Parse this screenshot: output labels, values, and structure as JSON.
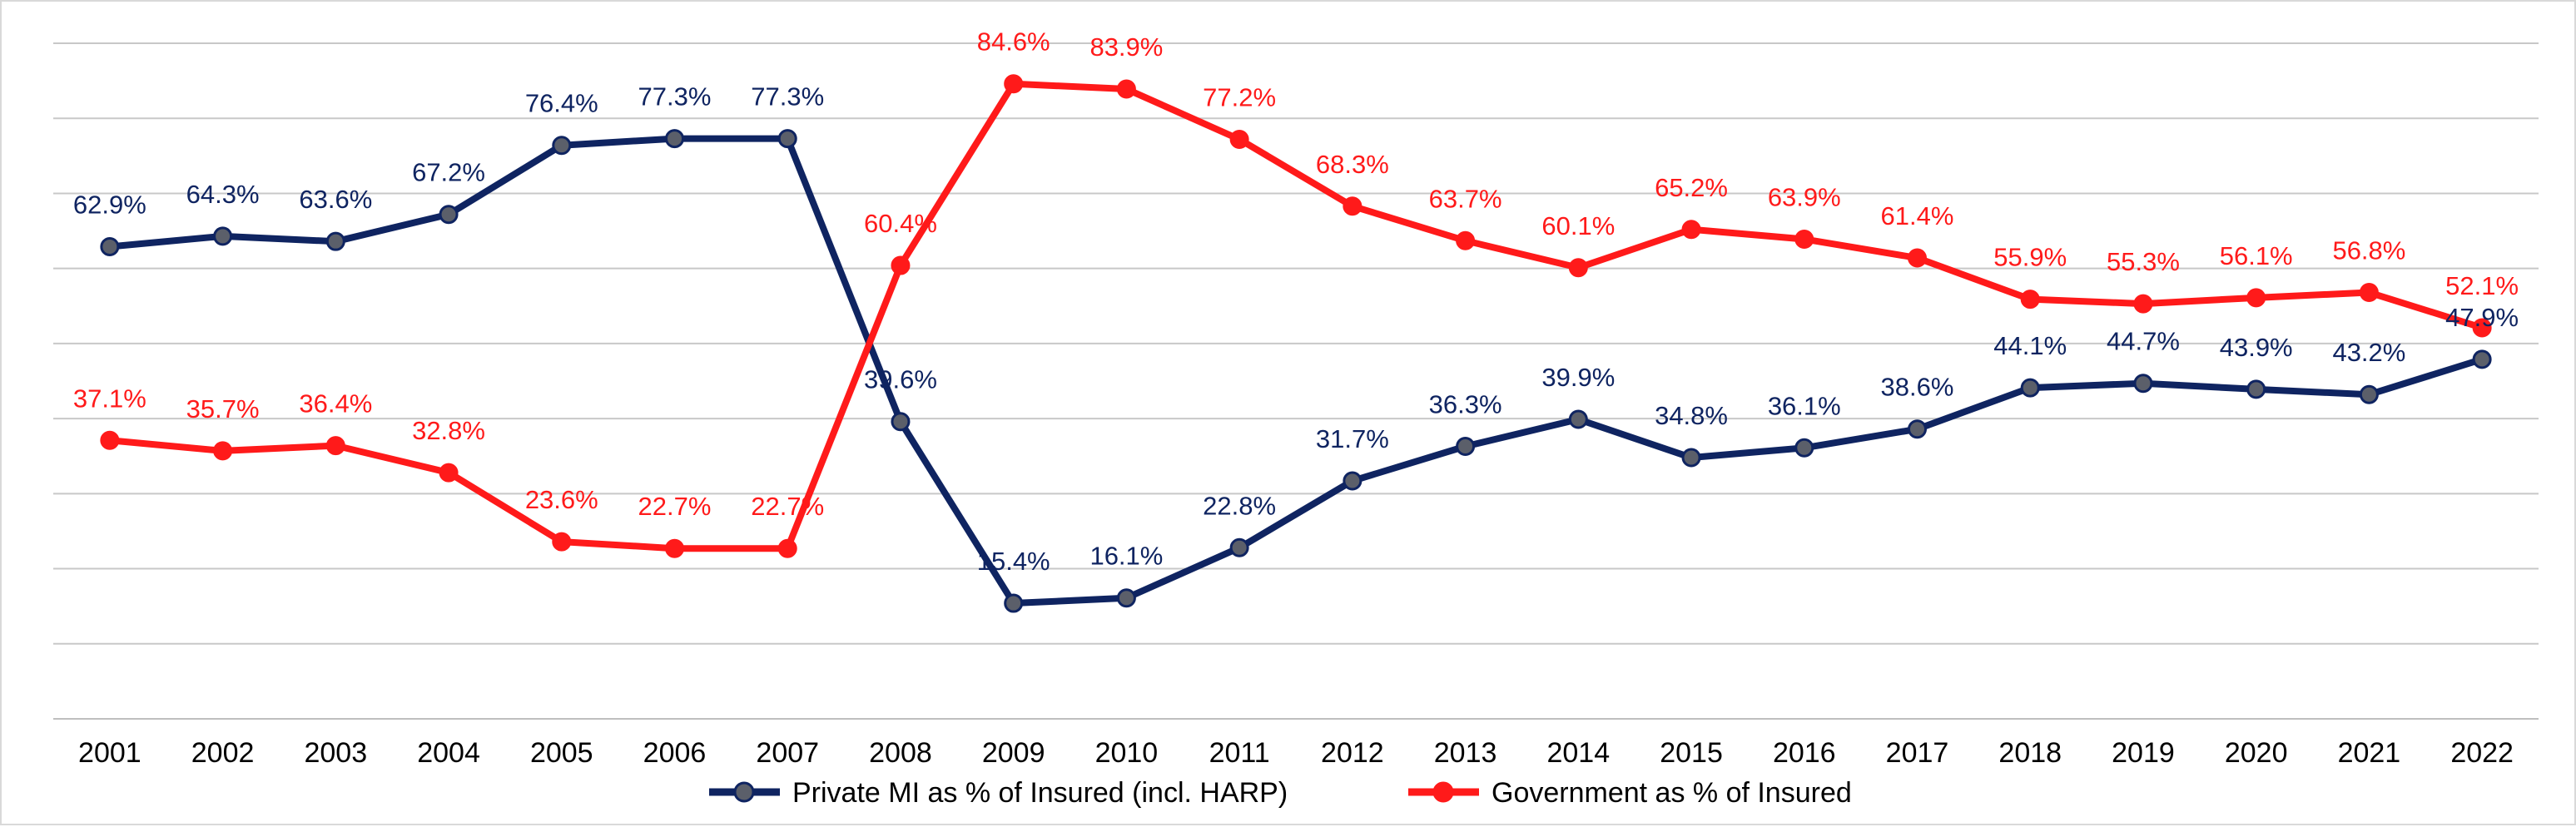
{
  "chart_data": {
    "type": "line",
    "title": "",
    "xlabel": "",
    "ylabel": "",
    "ylim": [
      0,
      90
    ],
    "grid": true,
    "categories": [
      "2001",
      "2002",
      "2003",
      "2004",
      "2005",
      "2006",
      "2007",
      "2008",
      "2009",
      "2010",
      "2011",
      "2012",
      "2013",
      "2014",
      "2015",
      "2016",
      "2017",
      "2018",
      "2019",
      "2020",
      "2021",
      "2022"
    ],
    "series": [
      {
        "name": "Private MI as % of Insured (incl. HARP)",
        "color": "#0f2461",
        "marker_color": "#5b5f6a",
        "values": [
          62.9,
          64.3,
          63.6,
          67.2,
          76.4,
          77.3,
          77.3,
          39.6,
          15.4,
          16.1,
          22.8,
          31.7,
          36.3,
          39.9,
          34.8,
          36.1,
          38.6,
          44.1,
          44.7,
          43.9,
          43.2,
          47.9
        ],
        "labels": [
          "62.9%",
          "64.3%",
          "63.6%",
          "67.2%",
          "76.4%",
          "77.3%",
          "77.3%",
          "39.6%",
          "15.4%",
          "16.1%",
          "22.8%",
          "31.7%",
          "36.3%",
          "39.9%",
          "34.8%",
          "36.1%",
          "38.6%",
          "44.1%",
          "44.7%",
          "43.9%",
          "43.2%",
          "47.9%"
        ]
      },
      {
        "name": "Government as % of Insured",
        "color": "#ff1a1a",
        "marker_color": "#ff1a1a",
        "values": [
          37.1,
          35.7,
          36.4,
          32.8,
          23.6,
          22.7,
          22.7,
          60.4,
          84.6,
          83.9,
          77.2,
          68.3,
          63.7,
          60.1,
          65.2,
          63.9,
          61.4,
          55.9,
          55.3,
          56.1,
          56.8,
          52.1
        ],
        "labels": [
          "37.1%",
          "35.7%",
          "36.4%",
          "32.8%",
          "23.6%",
          "22.7%",
          "22.7%",
          "60.4%",
          "84.6%",
          "83.9%",
          "77.2%",
          "68.3%",
          "63.7%",
          "60.1%",
          "65.2%",
          "63.9%",
          "61.4%",
          "55.9%",
          "55.3%",
          "56.1%",
          "56.8%",
          "52.1%"
        ]
      }
    ],
    "legend": {
      "position": "bottom",
      "entries": [
        "Private MI as % of Insured (incl. HARP)",
        "Government as % of Insured"
      ]
    }
  }
}
